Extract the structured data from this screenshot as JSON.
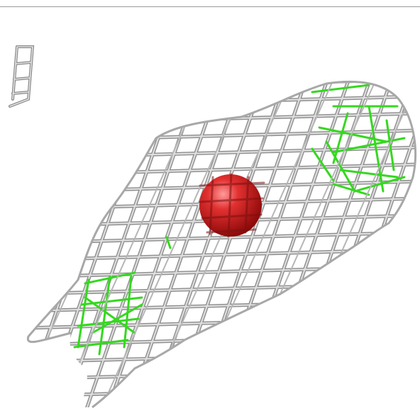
{
  "scene": {
    "subject": "electron-density-mesh",
    "colors": {
      "background": "#ffffff",
      "rule": "#9a9a9a",
      "mesh": "#b8b8b8",
      "mesh_highlight": "#e6e6e6",
      "mesh_shadow": "#8a8a8a",
      "inner_mesh": "#33dd22",
      "atom": "#cc1111",
      "atom_highlight": "#ff8888"
    },
    "icons": {
      "atom": "red-sphere",
      "mesh": "wireframe-grid"
    }
  }
}
